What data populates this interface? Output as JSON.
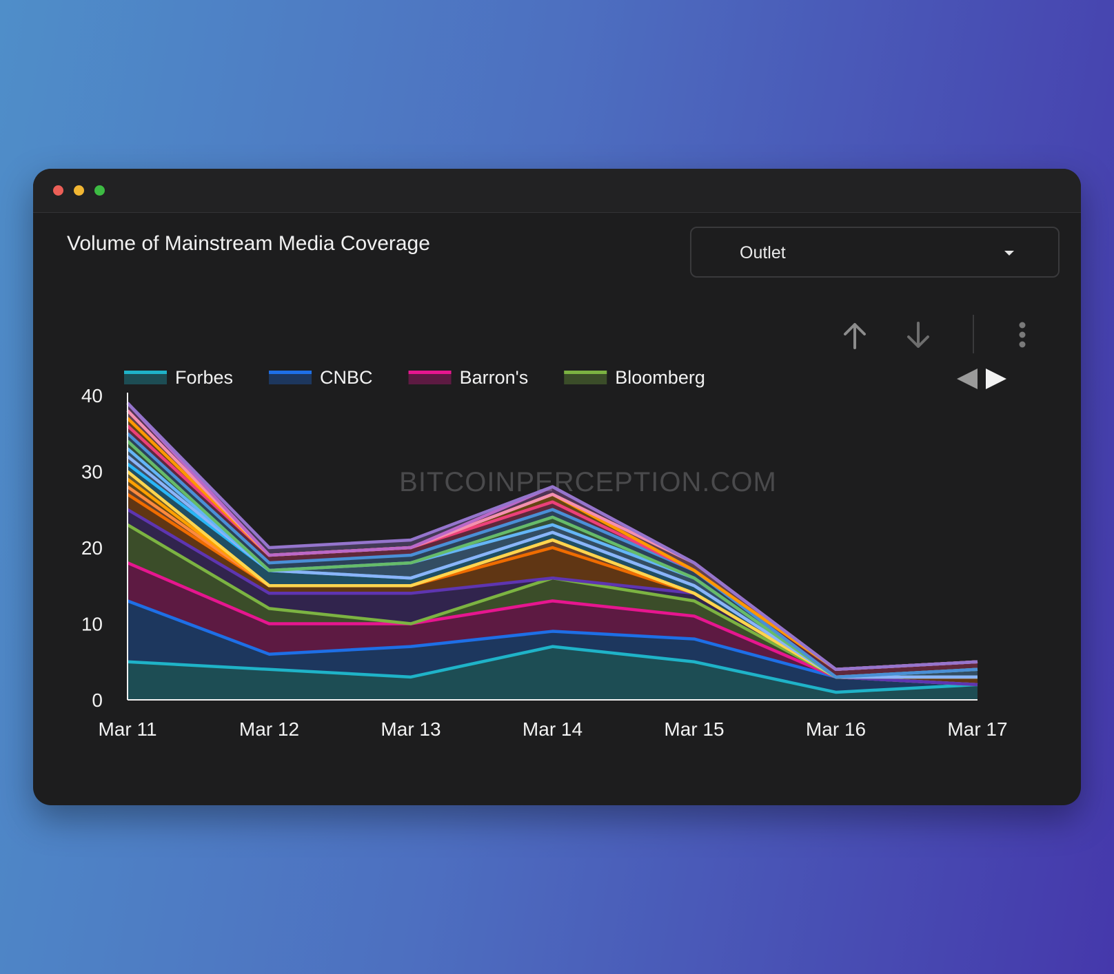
{
  "window": {
    "controls": [
      "close",
      "minimize",
      "zoom"
    ]
  },
  "header": {
    "title": "Volume of Mainstream Media Coverage"
  },
  "filter": {
    "selected": "Outlet"
  },
  "toolbar": {
    "icons": [
      "arrow-up-icon",
      "arrow-down-icon",
      "more-vert-icon"
    ]
  },
  "legend_nav": {
    "icons": [
      "prev-triangle-icon",
      "next-triangle-icon"
    ]
  },
  "watermark": "BITCOINPERCEPTION.COM",
  "chart_data": {
    "type": "area",
    "stacked": true,
    "title": "Volume of Mainstream Media Coverage",
    "categories": [
      "Mar 11",
      "Mar 12",
      "Mar 13",
      "Mar 14",
      "Mar 15",
      "Mar 16",
      "Mar 17"
    ],
    "ylim": [
      0,
      40
    ],
    "yticks": [
      0,
      10,
      20,
      30,
      40
    ],
    "legend_position": "top-left",
    "series": [
      {
        "name": "Forbes",
        "color": "#1fb3c8",
        "values": [
          5,
          4,
          3,
          7,
          5,
          1,
          2
        ]
      },
      {
        "name": "CNBC",
        "color": "#1e6fe6",
        "values": [
          8,
          2,
          4,
          2,
          3,
          2,
          0
        ]
      },
      {
        "name": "Barron's",
        "color": "#e6168f",
        "values": [
          5,
          4,
          3,
          4,
          3,
          0,
          0
        ]
      },
      {
        "name": "Bloomberg",
        "color": "#7cb342",
        "values": [
          5,
          2,
          0,
          3,
          2,
          0,
          0
        ]
      },
      {
        "color": "#5e35b1",
        "values": [
          2,
          2,
          4,
          0,
          1,
          0,
          0
        ]
      },
      {
        "color": "#ef6c00",
        "values": [
          2,
          1,
          1,
          4,
          0,
          0,
          1
        ]
      },
      {
        "color": "#ff8a3d",
        "values": [
          1,
          0,
          0,
          1,
          0,
          0,
          0
        ]
      },
      {
        "color": "#ffa000",
        "values": [
          1,
          0,
          0,
          0,
          0,
          0,
          0
        ]
      },
      {
        "color": "#ffd54f",
        "values": [
          1,
          0,
          0,
          0,
          0,
          0,
          0
        ]
      },
      {
        "color": "#29b6f6",
        "values": [
          1,
          2,
          1,
          1,
          1,
          0,
          0
        ]
      },
      {
        "color": "#8ab4f8",
        "values": [
          1,
          0,
          0,
          0,
          0,
          0,
          0
        ]
      },
      {
        "color": "#64b5f6",
        "values": [
          1,
          0,
          2,
          1,
          1,
          0,
          1
        ]
      },
      {
        "color": "#66bb6a",
        "values": [
          1,
          0,
          0,
          1,
          0,
          0,
          0
        ]
      },
      {
        "color": "#4a8fd6",
        "values": [
          1,
          1,
          1,
          1,
          1,
          0,
          0
        ]
      },
      {
        "color": "#ec407a",
        "values": [
          1,
          1,
          1,
          1,
          0,
          1,
          1
        ]
      },
      {
        "color": "#ff9800",
        "values": [
          1,
          0,
          0,
          1,
          0,
          0,
          0
        ]
      },
      {
        "color": "#f48fb1",
        "values": [
          1,
          0,
          0,
          0,
          1,
          0,
          0
        ]
      },
      {
        "color": "#ba68c8",
        "values": [
          1,
          0,
          0,
          1,
          0,
          0,
          0
        ]
      },
      {
        "color": "#9575cd",
        "values": [
          0,
          1,
          1,
          0,
          0,
          0,
          0
        ]
      }
    ]
  }
}
